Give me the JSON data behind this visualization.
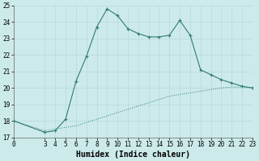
{
  "xlabel": "Humidex (Indice chaleur)",
  "xlim": [
    0,
    23
  ],
  "ylim": [
    17,
    25
  ],
  "yticks": [
    17,
    18,
    19,
    20,
    21,
    22,
    23,
    24,
    25
  ],
  "xticks": [
    0,
    3,
    4,
    5,
    6,
    7,
    8,
    9,
    10,
    11,
    12,
    13,
    14,
    15,
    16,
    17,
    18,
    19,
    20,
    21,
    22,
    23
  ],
  "curve1_x": [
    0,
    3,
    4,
    5,
    6,
    7,
    8,
    9,
    10,
    11,
    12,
    13,
    14,
    15,
    16,
    17,
    18,
    19,
    20,
    21,
    22,
    23
  ],
  "curve1_y": [
    18.0,
    17.3,
    17.4,
    18.1,
    20.4,
    21.9,
    23.7,
    24.8,
    24.4,
    23.6,
    23.3,
    23.1,
    23.1,
    23.2,
    24.1,
    23.2,
    21.1,
    20.8,
    20.5,
    20.3,
    20.1,
    20.0
  ],
  "curve2_x": [
    0,
    3,
    4,
    5,
    6,
    7,
    8,
    9,
    10,
    11,
    12,
    13,
    14,
    15,
    16,
    17,
    18,
    19,
    20,
    21,
    22,
    23
  ],
  "curve2_y": [
    18.0,
    17.4,
    17.5,
    17.6,
    17.7,
    17.9,
    18.1,
    18.3,
    18.5,
    18.7,
    18.9,
    19.1,
    19.3,
    19.5,
    19.6,
    19.7,
    19.8,
    19.9,
    20.0,
    20.05,
    20.05,
    20.0
  ],
  "line_color": "#2e7d6e",
  "bg_color": "#cdeaea",
  "grid_color": "#b8d8d8",
  "text_color": "#000000",
  "tick_fontsize": 5.5,
  "label_fontsize": 7
}
